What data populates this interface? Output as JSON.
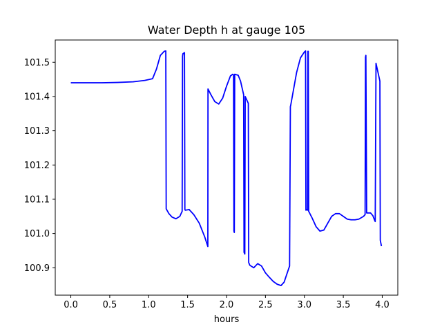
{
  "chart_data": {
    "type": "line",
    "title": "Water Depth h at gauge 105",
    "xlabel": "hours",
    "ylabel": "",
    "xlim": [
      -0.2,
      4.2
    ],
    "ylim": [
      100.82,
      101.565
    ],
    "xticks": [
      0.0,
      0.5,
      1.0,
      1.5,
      2.0,
      2.5,
      3.0,
      3.5,
      4.0
    ],
    "xtick_labels": [
      "0.0",
      "0.5",
      "1.0",
      "1.5",
      "2.0",
      "2.5",
      "3.0",
      "3.5",
      "4.0"
    ],
    "yticks": [
      100.9,
      101.0,
      101.1,
      101.2,
      101.3,
      101.4,
      101.5
    ],
    "ytick_labels": [
      "100.9",
      "101.0",
      "101.1",
      "101.2",
      "101.3",
      "101.4",
      "101.5"
    ],
    "grid": false,
    "legend": "none",
    "series": [
      {
        "color": "#0000ff",
        "x": [
          0.0,
          0.2,
          0.4,
          0.6,
          0.8,
          0.95,
          1.05,
          1.1,
          1.15,
          1.2,
          1.22,
          1.225,
          1.26,
          1.3,
          1.35,
          1.4,
          1.43,
          1.435,
          1.44,
          1.46,
          1.465,
          1.47,
          1.52,
          1.58,
          1.65,
          1.72,
          1.76,
          1.762,
          1.8,
          1.85,
          1.9,
          1.95,
          2.0,
          2.05,
          2.08,
          2.09,
          2.095,
          2.1,
          2.105,
          2.15,
          2.18,
          2.22,
          2.225,
          2.235,
          2.24,
          2.28,
          2.285,
          2.3,
          2.35,
          2.4,
          2.45,
          2.5,
          2.55,
          2.6,
          2.65,
          2.7,
          2.74,
          2.78,
          2.81,
          2.82,
          2.825,
          2.9,
          2.95,
          3.0,
          3.015,
          3.02,
          3.025,
          3.04,
          3.045,
          3.05,
          3.055,
          3.1,
          3.15,
          3.2,
          3.25,
          3.3,
          3.35,
          3.4,
          3.45,
          3.5,
          3.55,
          3.6,
          3.65,
          3.7,
          3.76,
          3.78,
          3.785,
          3.79,
          3.8,
          3.85,
          3.88,
          3.9,
          3.91,
          3.92,
          3.97,
          3.975,
          3.99
        ],
        "y": [
          101.44,
          101.44,
          101.44,
          101.441,
          101.443,
          101.447,
          101.452,
          101.48,
          101.52,
          101.532,
          101.533,
          101.072,
          101.058,
          101.048,
          101.043,
          101.05,
          101.065,
          101.518,
          101.525,
          101.528,
          101.07,
          101.068,
          101.07,
          101.055,
          101.03,
          100.99,
          100.962,
          101.422,
          101.405,
          101.385,
          101.378,
          101.395,
          101.43,
          101.46,
          101.465,
          101.463,
          101.007,
          101.003,
          101.465,
          101.462,
          101.445,
          101.405,
          100.945,
          100.94,
          101.4,
          101.38,
          100.915,
          100.907,
          100.9,
          100.912,
          100.905,
          100.885,
          100.872,
          100.86,
          100.852,
          100.848,
          100.858,
          100.885,
          100.905,
          101.37,
          101.375,
          101.47,
          101.513,
          101.53,
          101.533,
          101.068,
          101.07,
          101.068,
          101.532,
          101.532,
          101.065,
          101.045,
          101.02,
          101.007,
          101.01,
          101.03,
          101.05,
          101.058,
          101.058,
          101.05,
          101.042,
          101.04,
          101.04,
          101.042,
          101.05,
          101.055,
          101.515,
          101.52,
          101.06,
          101.06,
          101.052,
          101.04,
          101.035,
          101.497,
          101.445,
          100.98,
          100.963
        ]
      }
    ]
  }
}
